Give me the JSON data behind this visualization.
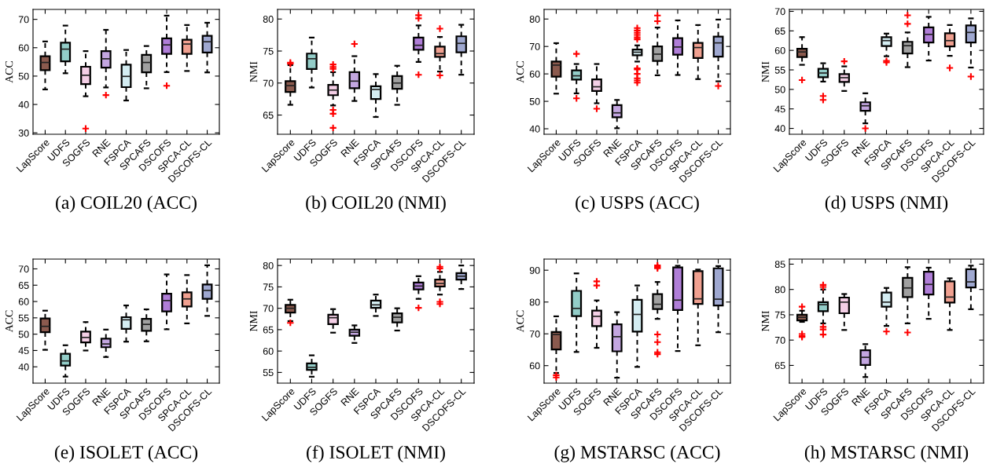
{
  "chart_data": [
    {
      "type": "box",
      "title": "(a) COIL20 (ACC)",
      "ylabel": "ACC",
      "categories": [
        "LapScore",
        "UDFS",
        "SOGFS",
        "RNE",
        "FSPCA",
        "SPCAFS",
        "DSCOFS",
        "SPCA-CL",
        "DSCOFS-CL"
      ],
      "colors": [
        "#8b5a4e",
        "#93cdc8",
        "#f4cfe6",
        "#c3a6e0",
        "#d4edf2",
        "#a0a0a0",
        "#b07ed8",
        "#f0a090",
        "#9fa8d0"
      ],
      "ylim": [
        29.5,
        73.5
      ],
      "yticks": [
        30,
        40,
        50,
        60,
        70
      ],
      "boxes": [
        {
          "low": 45.3,
          "q1": 52.1,
          "median": 54.8,
          "q3": 57.0,
          "high": 62.2
        },
        {
          "low": 51.0,
          "q1": 55.2,
          "median": 59.5,
          "q3": 61.8,
          "high": 67.8
        },
        {
          "low": 42.9,
          "q1": 47.2,
          "median": 50.3,
          "q3": 53.3,
          "high": 58.8,
          "outliers": [
            31.5
          ]
        },
        {
          "low": 46.0,
          "q1": 53.0,
          "median": 56.1,
          "q3": 58.8,
          "high": 66.3,
          "outliers": [
            43.3
          ]
        },
        {
          "low": 41.4,
          "q1": 46.1,
          "median": 49.9,
          "q3": 54.0,
          "high": 59.2
        },
        {
          "low": 45.7,
          "q1": 51.3,
          "median": 54.8,
          "q3": 57.5,
          "high": 60.6
        },
        {
          "low": 51.4,
          "q1": 57.8,
          "median": 61.0,
          "q3": 63.3,
          "high": 71.3,
          "outliers": [
            46.6
          ]
        },
        {
          "low": 51.8,
          "q1": 57.8,
          "median": 61.3,
          "q3": 62.8,
          "high": 68.0
        },
        {
          "low": 51.3,
          "q1": 58.3,
          "median": 62.1,
          "q3": 64.2,
          "high": 68.8
        }
      ]
    },
    {
      "type": "box",
      "title": "(b) COIL20 (NMI)",
      "ylabel": "NMI",
      "categories": [
        "LapScore",
        "UDFS",
        "SOGFS",
        "RNE",
        "FSPCA",
        "SPCAFS",
        "DSCOFS",
        "SPCA-CL",
        "DSCOFS-CL"
      ],
      "colors": [
        "#8b5a4e",
        "#93cdc8",
        "#f4cfe6",
        "#c3a6e0",
        "#d4edf2",
        "#a0a0a0",
        "#b07ed8",
        "#f0a090",
        "#9fa8d0"
      ],
      "ylim": [
        62,
        81.5
      ],
      "yticks": [
        65,
        70,
        75,
        80
      ],
      "boxes": [
        {
          "low": 66.6,
          "q1": 68.6,
          "median": 69.6,
          "q3": 70.3,
          "high": 72.8,
          "outliers": [
            73.2,
            73.0
          ]
        },
        {
          "low": 69.3,
          "q1": 72.2,
          "median": 73.8,
          "q3": 74.6,
          "high": 77.1
        },
        {
          "low": 66.5,
          "q1": 68.1,
          "median": 68.9,
          "q3": 69.7,
          "high": 71.7,
          "outliers": [
            72.9,
            72.5,
            72.2,
            65.8,
            65.2,
            63.0
          ]
        },
        {
          "low": 67.2,
          "q1": 69.2,
          "median": 70.3,
          "q3": 71.7,
          "high": 74.2,
          "outliers": [
            76.1
          ]
        },
        {
          "low": 64.7,
          "q1": 67.5,
          "median": 69.0,
          "q3": 69.5,
          "high": 71.4
        },
        {
          "low": 66.6,
          "q1": 69.1,
          "median": 70.0,
          "q3": 71.1,
          "high": 72.7
        },
        {
          "low": 73.3,
          "q1": 75.2,
          "median": 75.9,
          "q3": 77.1,
          "high": 79.0,
          "outliers": [
            80.6,
            80.1,
            71.3
          ]
        },
        {
          "low": 71.8,
          "q1": 74.1,
          "median": 74.6,
          "q3": 75.7,
          "high": 77.2,
          "outliers": [
            78.5,
            71.2
          ]
        },
        {
          "low": 71.3,
          "q1": 74.8,
          "median": 76.2,
          "q3": 77.3,
          "high": 79.1
        }
      ]
    },
    {
      "type": "box",
      "title": "(c) USPS (ACC)",
      "ylabel": "ACC",
      "categories": [
        "LapScore",
        "UDFS",
        "SOGFS",
        "RNE",
        "FSPCA",
        "SPCAFS",
        "DSCOFS",
        "SPCA-CL",
        "DSCOFS-CL"
      ],
      "colors": [
        "#8b5a4e",
        "#93cdc8",
        "#f4cfe6",
        "#c3a6e0",
        "#d4edf2",
        "#a0a0a0",
        "#b07ed8",
        "#f0a090",
        "#9fa8d0"
      ],
      "ylim": [
        38,
        83.5
      ],
      "yticks": [
        40,
        50,
        60,
        70,
        80
      ],
      "boxes": [
        {
          "low": 52.8,
          "q1": 59.0,
          "median": 63.2,
          "q3": 64.5,
          "high": 71.2
        },
        {
          "low": 52.9,
          "q1": 57.9,
          "median": 59.3,
          "q3": 61.3,
          "high": 63.6,
          "outliers": [
            67.3,
            51.1
          ]
        },
        {
          "low": 49.3,
          "q1": 53.8,
          "median": 55.3,
          "q3": 58.0,
          "high": 63.6,
          "outliers": [
            47.3
          ]
        },
        {
          "low": 40.2,
          "q1": 44.2,
          "median": 45.8,
          "q3": 48.6,
          "high": 50.5
        },
        {
          "low": 64.5,
          "q1": 66.8,
          "median": 67.9,
          "q3": 68.9,
          "high": 70.4,
          "outliers": [
            76.7,
            75.8,
            75.0,
            74.2,
            73.3,
            72.6,
            62.0,
            61.6,
            60.0,
            58.4,
            57.6,
            56.8
          ]
        },
        {
          "low": 59.5,
          "q1": 64.7,
          "median": 67.2,
          "q3": 70.0,
          "high": 76.9,
          "outliers": [
            81.3,
            79.2
          ]
        },
        {
          "low": 59.6,
          "q1": 67.0,
          "median": 69.8,
          "q3": 73.0,
          "high": 79.5
        },
        {
          "low": 58.1,
          "q1": 65.8,
          "median": 69.6,
          "q3": 71.3,
          "high": 77.8
        },
        {
          "low": 57.3,
          "q1": 66.3,
          "median": 71.3,
          "q3": 73.6,
          "high": 79.8,
          "outliers": [
            55.6
          ]
        }
      ]
    },
    {
      "type": "box",
      "title": "(d) USPS (NMI)",
      "ylabel": "NMI",
      "categories": [
        "LapScore",
        "UDFS",
        "SOGFS",
        "RNE",
        "FSPCA",
        "SPCAFS",
        "DSCOFS",
        "SPCA-CL",
        "DSCOFS-CL"
      ],
      "colors": [
        "#8b5a4e",
        "#93cdc8",
        "#f4cfe6",
        "#c3a6e0",
        "#d4edf2",
        "#a0a0a0",
        "#b07ed8",
        "#f0a090",
        "#9fa8d0"
      ],
      "ylim": [
        38.5,
        70.5
      ],
      "yticks": [
        40,
        45,
        50,
        55,
        60,
        65,
        70
      ],
      "boxes": [
        {
          "low": 56.3,
          "q1": 58.3,
          "median": 59.6,
          "q3": 60.4,
          "high": 63.4,
          "outliers": [
            52.4
          ]
        },
        {
          "low": 52.0,
          "q1": 53.1,
          "median": 54.2,
          "q3": 55.3,
          "high": 56.7,
          "outliers": [
            48.3,
            47.3
          ]
        },
        {
          "low": 49.6,
          "q1": 51.9,
          "median": 53.0,
          "q3": 53.9,
          "high": 55.9,
          "outliers": [
            57.2
          ]
        },
        {
          "low": 41.3,
          "q1": 44.5,
          "median": 45.8,
          "q3": 46.7,
          "high": 49.0,
          "outliers": [
            40.0
          ]
        },
        {
          "low": 58.5,
          "q1": 61.1,
          "median": 62.5,
          "q3": 63.4,
          "high": 64.3,
          "outliers": [
            57.3,
            56.9
          ]
        },
        {
          "low": 55.7,
          "q1": 59.2,
          "median": 61.2,
          "q3": 62.2,
          "high": 64.6,
          "outliers": [
            69.0,
            66.8
          ]
        },
        {
          "low": 57.4,
          "q1": 62.0,
          "median": 64.1,
          "q3": 65.9,
          "high": 68.6
        },
        {
          "low": 58.6,
          "q1": 61.0,
          "median": 62.5,
          "q3": 64.4,
          "high": 66.5,
          "outliers": [
            55.5
          ]
        },
        {
          "low": 55.6,
          "q1": 62.0,
          "median": 64.6,
          "q3": 66.4,
          "high": 68.2,
          "outliers": [
            53.3
          ]
        }
      ]
    },
    {
      "type": "box",
      "title": "(e) ISOLET (ACC)",
      "ylabel": "ACC",
      "categories": [
        "LapScore",
        "UDFS",
        "SOGFS",
        "RNE",
        "FSPCA",
        "SPCAFS",
        "DSCOFS",
        "SPCA-CL",
        "DSCOFS-CL"
      ],
      "colors": [
        "#8b5a4e",
        "#93cdc8",
        "#f4cfe6",
        "#c3a6e0",
        "#d4edf2",
        "#a0a0a0",
        "#b07ed8",
        "#f0a090",
        "#9fa8d0"
      ],
      "ylim": [
        35,
        73
      ],
      "yticks": [
        40,
        45,
        50,
        55,
        60,
        65,
        70
      ],
      "boxes": [
        {
          "low": 45.2,
          "q1": 50.6,
          "median": 52.4,
          "q3": 54.8,
          "high": 57.2
        },
        {
          "low": 37.0,
          "q1": 40.4,
          "median": 41.8,
          "q3": 44.0,
          "high": 46.6
        },
        {
          "low": 45.0,
          "q1": 47.5,
          "median": 49.0,
          "q3": 50.8,
          "high": 53.7
        },
        {
          "low": 43.0,
          "q1": 46.0,
          "median": 47.0,
          "q3": 48.6,
          "high": 51.4
        },
        {
          "low": 47.7,
          "q1": 51.6,
          "median": 54.4,
          "q3": 55.2,
          "high": 58.8
        },
        {
          "low": 47.8,
          "q1": 51.0,
          "median": 53.0,
          "q3": 54.7,
          "high": 57.6
        },
        {
          "low": 51.5,
          "q1": 57.0,
          "median": 60.3,
          "q3": 62.4,
          "high": 68.3
        },
        {
          "low": 53.3,
          "q1": 58.5,
          "median": 60.8,
          "q3": 62.8,
          "high": 68.1
        },
        {
          "low": 55.6,
          "q1": 60.8,
          "median": 63.4,
          "q3": 65.2,
          "high": 71.1
        }
      ]
    },
    {
      "type": "box",
      "title": "(f) ISOLET (NMI)",
      "ylabel": "NMI",
      "categories": [
        "LapScore",
        "UDFS",
        "SOGFS",
        "RNE",
        "FSPCA",
        "SPCAFS",
        "DSCOFS",
        "SPCA-CL",
        "DSCOFS-CL"
      ],
      "colors": [
        "#8b5a4e",
        "#93cdc8",
        "#f4cfe6",
        "#c3a6e0",
        "#d4edf2",
        "#a0a0a0",
        "#b07ed8",
        "#f0a090",
        "#9fa8d0"
      ],
      "ylim": [
        52.5,
        81.5
      ],
      "yticks": [
        55,
        60,
        65,
        70,
        75,
        80
      ],
      "boxes": [
        {
          "low": 67.0,
          "q1": 69.0,
          "median": 70.0,
          "q3": 70.8,
          "high": 72.0,
          "outliers": [
            66.6
          ]
        },
        {
          "low": 54.0,
          "q1": 55.6,
          "median": 56.2,
          "q3": 57.1,
          "high": 59.0
        },
        {
          "low": 64.3,
          "q1": 66.3,
          "median": 67.8,
          "q3": 68.5,
          "high": 69.8
        },
        {
          "low": 61.9,
          "q1": 63.6,
          "median": 64.4,
          "q3": 65.0,
          "high": 66.0
        },
        {
          "low": 68.2,
          "q1": 70.1,
          "median": 70.8,
          "q3": 71.8,
          "high": 73.2
        },
        {
          "low": 64.8,
          "q1": 66.7,
          "median": 67.9,
          "q3": 68.8,
          "high": 70.0
        },
        {
          "low": 72.2,
          "q1": 74.4,
          "median": 75.2,
          "q3": 76.0,
          "high": 77.5,
          "outliers": [
            70.1
          ]
        },
        {
          "low": 73.2,
          "q1": 75.1,
          "median": 75.8,
          "q3": 76.7,
          "high": 78.5,
          "outliers": [
            79.7,
            79.3,
            71.5,
            71.0
          ]
        },
        {
          "low": 74.5,
          "q1": 76.7,
          "median": 77.5,
          "q3": 78.2,
          "high": 80.0
        }
      ]
    },
    {
      "type": "box",
      "title": "(g) MSTARSC (ACC)",
      "ylabel": "ACC",
      "categories": [
        "LapScore",
        "UDFS",
        "SOGFS",
        "RNE",
        "FSPCA",
        "SPCAFS",
        "DSCOFS",
        "SPCA-CL",
        "DSCOFS-CL"
      ],
      "colors": [
        "#8b5a4e",
        "#93cdc8",
        "#f4cfe6",
        "#c3a6e0",
        "#d4edf2",
        "#a0a0a0",
        "#b07ed8",
        "#f0a090",
        "#9fa8d0"
      ],
      "ylim": [
        54.5,
        93.5
      ],
      "yticks": [
        60,
        70,
        80,
        90
      ],
      "boxes": [
        {
          "low": 57.7,
          "q1": 65.1,
          "median": 69.8,
          "q3": 70.6,
          "high": 75.5,
          "outliers": [
            57.0,
            56.3
          ]
        },
        {
          "low": 64.3,
          "q1": 75.6,
          "median": 78.0,
          "q3": 83.5,
          "high": 89.0
        },
        {
          "low": 65.6,
          "q1": 72.4,
          "median": 75.5,
          "q3": 77.3,
          "high": 80.5,
          "outliers": [
            86.5,
            85.2
          ]
        },
        {
          "low": 56.2,
          "q1": 64.5,
          "median": 69.1,
          "q3": 73.0,
          "high": 76.8
        },
        {
          "low": 59.6,
          "q1": 70.7,
          "median": 76.1,
          "q3": 80.7,
          "high": 85.2
        },
        {
          "low": 74.7,
          "q1": 77.8,
          "median": 79.3,
          "q3": 82.5,
          "high": 86.3,
          "outliers": [
            91.5,
            91.0,
            90.6,
            69.8,
            67.4,
            64.2,
            63.6
          ]
        },
        {
          "low": 64.6,
          "q1": 77.5,
          "median": 80.6,
          "q3": 90.9,
          "high": 91.4
        },
        {
          "low": 66.4,
          "q1": 79.4,
          "median": 81.0,
          "q3": 89.7,
          "high": 90.2
        },
        {
          "low": 70.5,
          "q1": 78.9,
          "median": 80.9,
          "q3": 90.6,
          "high": 91.3
        }
      ]
    },
    {
      "type": "box",
      "title": "(h) MSTARSC (NMI)",
      "ylabel": "NMI",
      "categories": [
        "LapScore",
        "UDFS",
        "SOGFS",
        "RNE",
        "FSPCA",
        "SPCAFS",
        "DSCOFS",
        "SPCA-CL",
        "DSCOFS-CL"
      ],
      "colors": [
        "#8b5a4e",
        "#93cdc8",
        "#f4cfe6",
        "#c3a6e0",
        "#d4edf2",
        "#a0a0a0",
        "#b07ed8",
        "#f0a090",
        "#9fa8d0"
      ],
      "ylim": [
        61.5,
        86
      ],
      "yticks": [
        65,
        70,
        75,
        80,
        85
      ],
      "boxes": [
        {
          "low": 73.6,
          "q1": 73.9,
          "median": 74.5,
          "q3": 75.0,
          "high": 75.8,
          "outliers": [
            76.6,
            71.2,
            70.8,
            70.6
          ]
        },
        {
          "low": 73.3,
          "q1": 75.7,
          "median": 77.0,
          "q3": 77.5,
          "high": 80.0,
          "outliers": [
            80.9,
            80.5,
            72.6,
            72.1,
            71.1
          ]
        },
        {
          "low": 72.0,
          "q1": 75.3,
          "median": 77.5,
          "q3": 78.4,
          "high": 79.1
        },
        {
          "low": 62.7,
          "q1": 65.1,
          "median": 66.6,
          "q3": 68.0,
          "high": 69.2
        },
        {
          "low": 72.8,
          "q1": 76.6,
          "median": 77.5,
          "q3": 79.4,
          "high": 80.3,
          "outliers": [
            71.7
          ]
        },
        {
          "low": 73.3,
          "q1": 78.5,
          "median": 80.3,
          "q3": 82.3,
          "high": 84.4,
          "outliers": [
            71.5
          ]
        },
        {
          "low": 74.2,
          "q1": 79.0,
          "median": 81.0,
          "q3": 83.5,
          "high": 84.3
        },
        {
          "low": 72.0,
          "q1": 77.4,
          "median": 78.5,
          "q3": 81.6,
          "high": 82.2
        },
        {
          "low": 76.1,
          "q1": 80.4,
          "median": 81.5,
          "q3": 84.0,
          "high": 84.7
        }
      ]
    }
  ]
}
